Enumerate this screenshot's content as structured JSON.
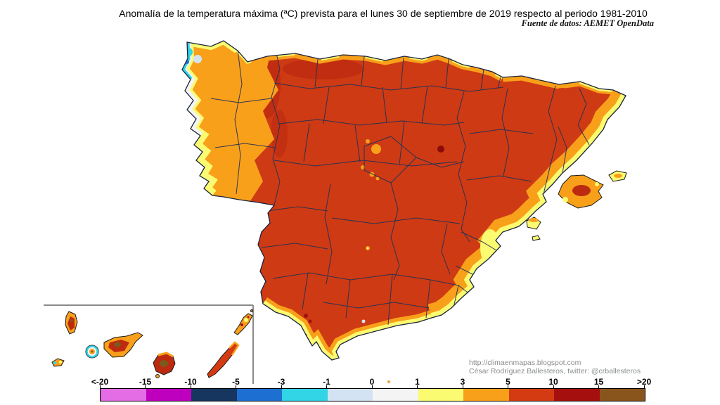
{
  "title": "Anomalía de la temperatura máxima (ªC) prevista para el lunes 30 de septiembre de 2019 respecto al periodo 1981-2010",
  "source": "Fuente de datos: AEMET OpenData",
  "credits": {
    "line1": "http://climaenmapas.blogspot.com",
    "line2": "César Rodríguez Ballesteros, twitter: @crballesteros"
  },
  "legend": {
    "tick_labels": [
      "<-20",
      "-15",
      "-10",
      "-5",
      "-3",
      "-1",
      "0",
      "1",
      "3",
      "5",
      "10",
      "15",
      ">20"
    ],
    "colors": [
      "#E46CE4",
      "#BE00BE",
      "#16365F",
      "#1E6FD2",
      "#31D5E5",
      "#D3E3F3",
      "#F4F4F4",
      "#FBFB72",
      "#F9A01B",
      "#D53B12",
      "#A50F0D",
      "#8A541D"
    ],
    "unit": "ªC"
  },
  "map": {
    "region": "Spain (peninsula, Balearic Islands, Canary Islands inset)",
    "dominant_anomaly_color": "#CE3A14",
    "palette": {
      "anomaly_5_to_10": "#CE3A14",
      "anomaly_10_to_15": "#A50F0D",
      "anomaly_gt_15": "#8A541D",
      "anomaly_3_to_5": "#F9A01B",
      "anomaly_1_to_3": "#FBFB72",
      "anomaly_0_to_1": "#F4F4F4",
      "anomaly_-1_to_0": "#D3E3F3",
      "anomaly_-3_to_-1": "#31D5E5",
      "boundary_lines": "#233255",
      "inset_border": "#8a8a8a"
    }
  },
  "chart_data": {
    "type": "heatmap",
    "subtype": "filled-contour choropleth map of forecast max-temperature anomaly (ªC)",
    "legend_bins": [
      "<-20",
      "-15",
      "-10",
      "-5",
      "-3",
      "-1",
      "0",
      "1",
      "3",
      "5",
      "10",
      "15",
      ">20"
    ],
    "legend_colors": [
      "#E46CE4",
      "#BE00BE",
      "#16365F",
      "#1E6FD2",
      "#31D5E5",
      "#D3E3F3",
      "#F4F4F4",
      "#FBFB72",
      "#F9A01B",
      "#D53B12",
      "#A50F0D",
      "#8A541D"
    ],
    "title": "Anomalía de la temperatura máxima (ªC) prevista para el lunes 30 de septiembre de 2019 respecto al periodo 1981-2010",
    "reading": "Most of inland Spain at +5 to +10 ªC anomaly; coastal fringes +1 to +5; NW Galicia tip -3 to 0; Canary Islands mixed +3 to >15"
  }
}
